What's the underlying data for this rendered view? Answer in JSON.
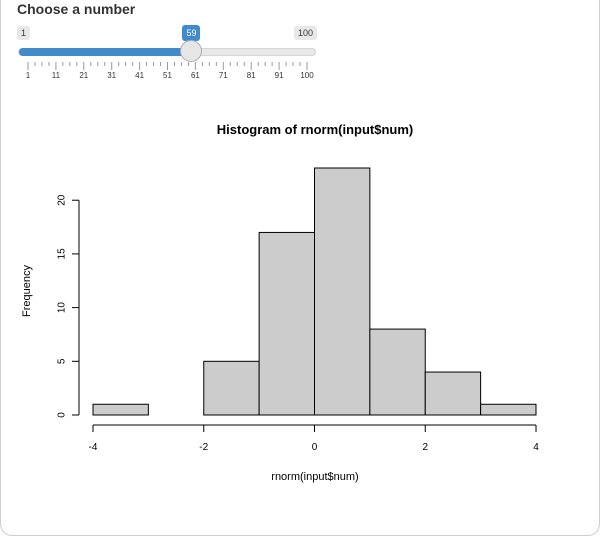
{
  "slider": {
    "label": "Choose a number",
    "min_label": "1",
    "max_label": "100",
    "value_label": "59",
    "min": 1,
    "max": 100,
    "value": 59,
    "tick_labels": [
      "1",
      "11",
      "21",
      "31",
      "41",
      "51",
      "61",
      "71",
      "81",
      "91",
      "100"
    ],
    "accent_color": "#428bca"
  },
  "chart_data": {
    "type": "bar",
    "title": "Histogram of rnorm(input$num)",
    "xlabel": "rnorm(input$num)",
    "ylabel": "Frequency",
    "bins": [
      {
        "from": -4,
        "to": -3,
        "count": 1
      },
      {
        "from": -3,
        "to": -2,
        "count": 0
      },
      {
        "from": -2,
        "to": -1,
        "count": 5
      },
      {
        "from": -1,
        "to": 0,
        "count": 17
      },
      {
        "from": 0,
        "to": 1,
        "count": 23
      },
      {
        "from": 1,
        "to": 2,
        "count": 8
      },
      {
        "from": 2,
        "to": 3,
        "count": 4
      },
      {
        "from": 3,
        "to": 4,
        "count": 1
      }
    ],
    "x_ticks": [
      -4,
      -2,
      0,
      2,
      4
    ],
    "x_tick_labels": [
      "-4",
      "-2",
      "0",
      "2",
      "4"
    ],
    "y_ticks": [
      0,
      5,
      10,
      15,
      20
    ],
    "y_tick_labels": [
      "0",
      "5",
      "10",
      "15",
      "20"
    ],
    "xlim": [
      -4,
      4
    ],
    "ylim": [
      0,
      23
    ],
    "bar_color": "#cccccc",
    "grid": false
  }
}
